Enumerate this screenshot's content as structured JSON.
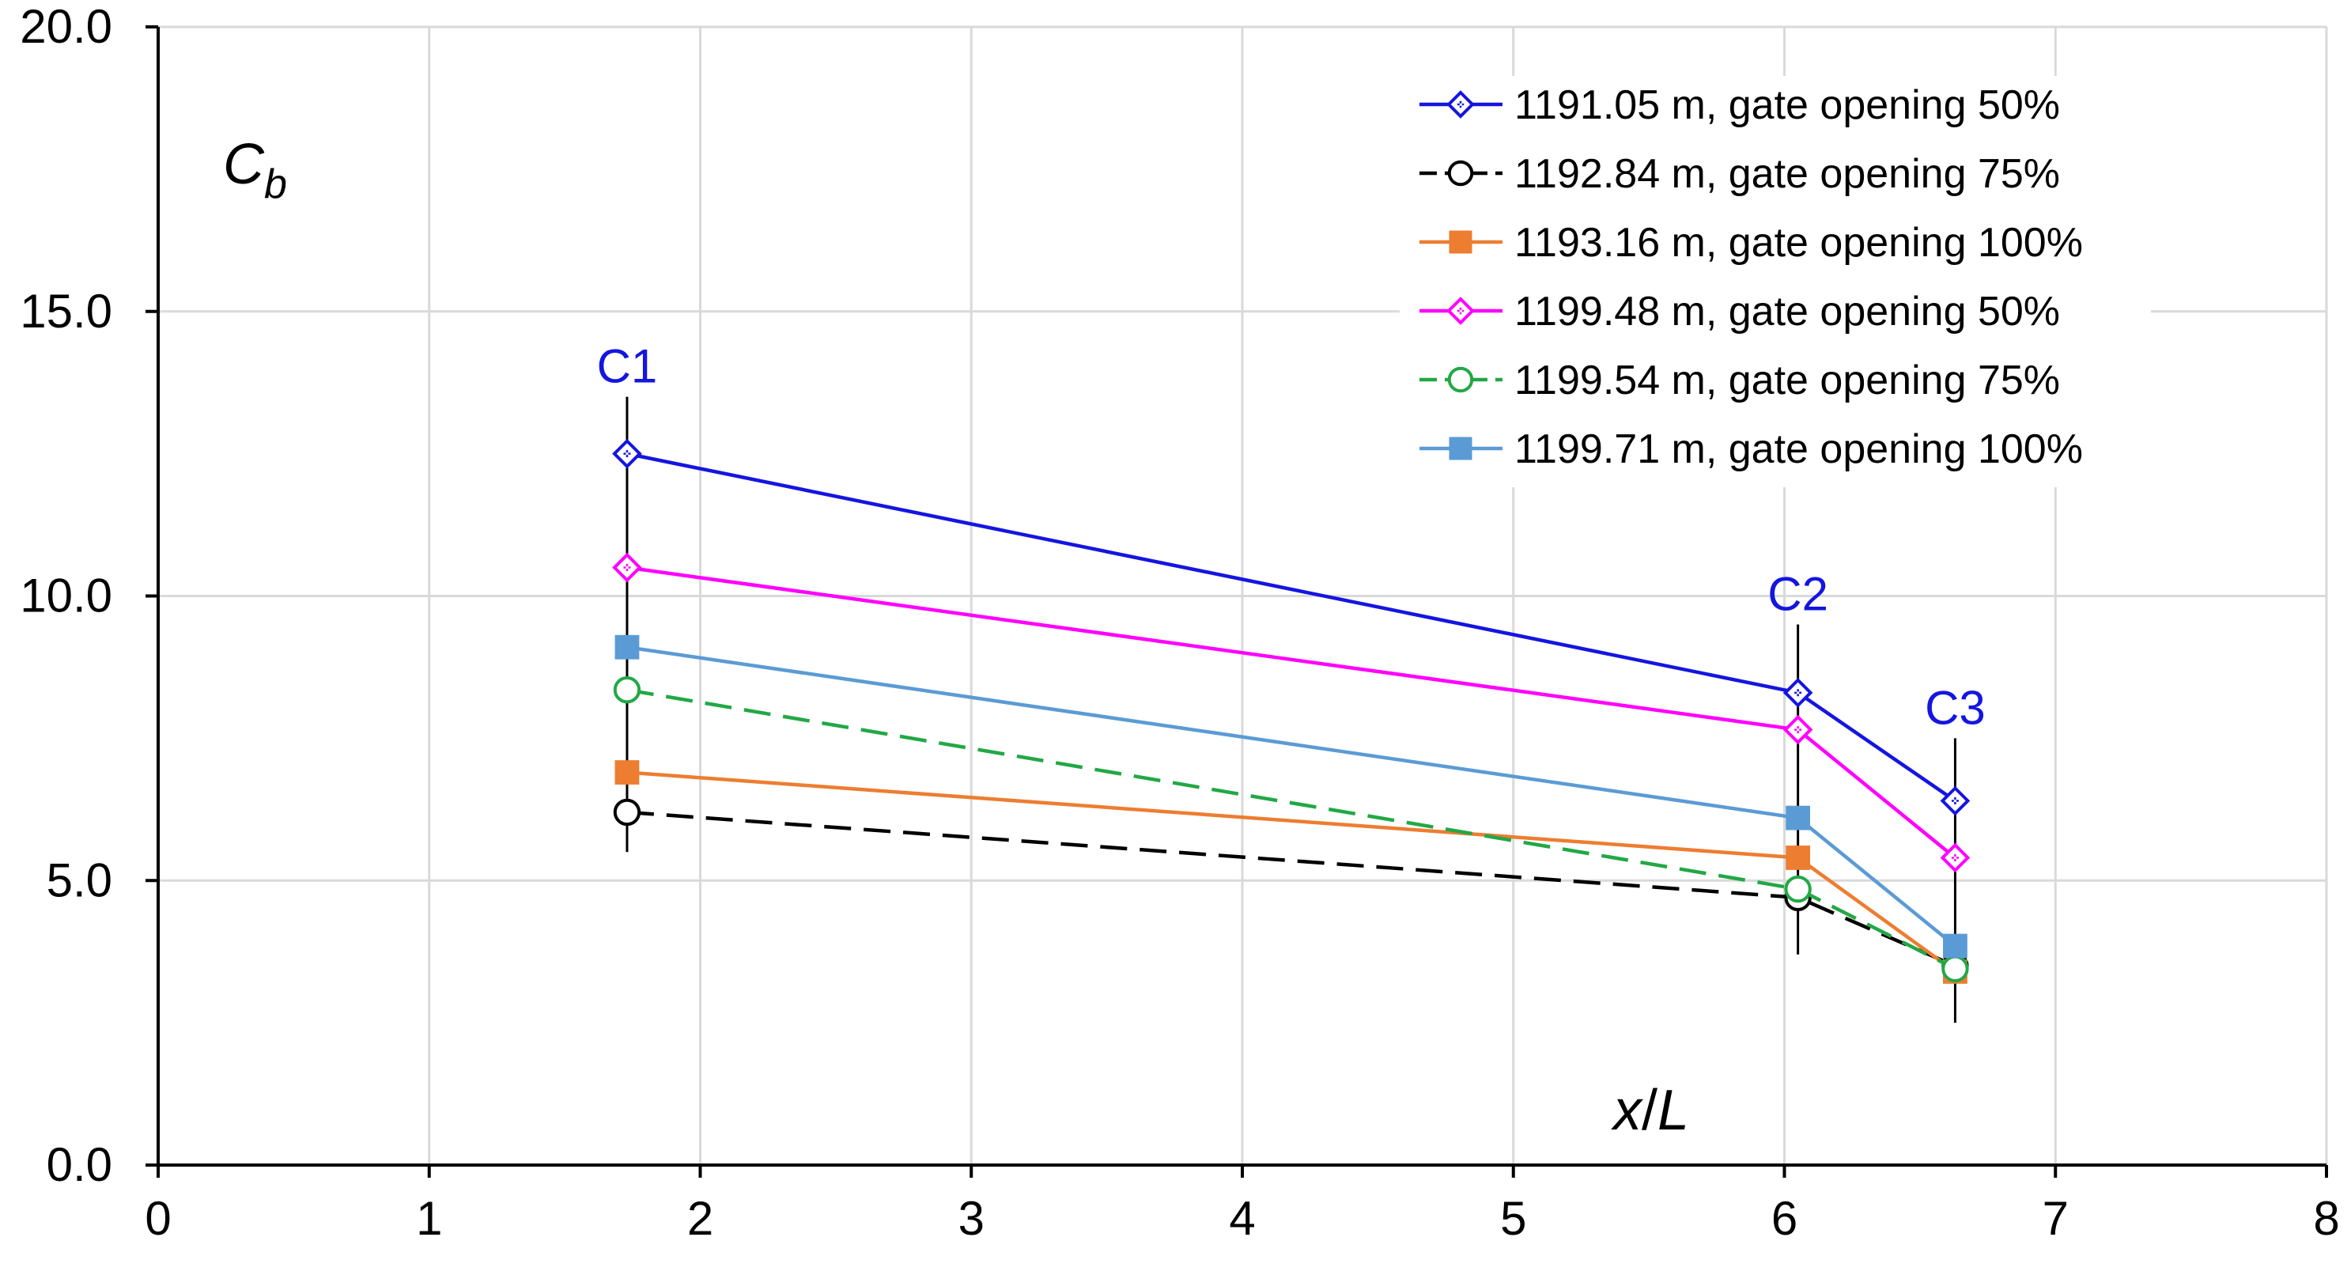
{
  "chart_data": {
    "type": "line",
    "xlabel_main": "x",
    "xlabel_sep": "/",
    "xlabel_sub": "L",
    "ylabel_main": "C",
    "ylabel_sub": "b",
    "xlim": [
      0,
      8
    ],
    "ylim": [
      0,
      20
    ],
    "grid": true,
    "legend_position": "top-right",
    "x_ticks": [
      0,
      1,
      2,
      3,
      4,
      5,
      6,
      7,
      8
    ],
    "x_tick_labels": [
      "0",
      "1",
      "2",
      "3",
      "4",
      "5",
      "6",
      "7",
      "8"
    ],
    "y_ticks": [
      0,
      5,
      10,
      15,
      20
    ],
    "y_tick_labels": [
      "0.0",
      "5.0",
      "10.0",
      "15.0",
      "20.0"
    ],
    "x": [
      1.73,
      6.05,
      6.63
    ],
    "series": [
      {
        "name": "1191.05 m, gate opening 50%",
        "values": [
          12.5,
          8.3,
          6.4
        ],
        "color": "#1515e0",
        "marker": "diamond",
        "fill": "none",
        "dash": "solid"
      },
      {
        "name": "1192.84 m, gate opening 75%",
        "values": [
          6.2,
          4.7,
          3.5
        ],
        "color": "#000000",
        "marker": "circle",
        "fill": "none",
        "dash": "dashed"
      },
      {
        "name": "1193.16 m, gate opening 100%",
        "values": [
          6.9,
          5.4,
          3.4
        ],
        "color": "#ed7d31",
        "marker": "square",
        "fill": "filled",
        "dash": "solid"
      },
      {
        "name": "1199.48 m, gate opening 50%",
        "values": [
          10.5,
          7.65,
          5.4
        ],
        "color": "#ff00ff",
        "marker": "diamond",
        "fill": "none",
        "dash": "solid"
      },
      {
        "name": "1199.54 m, gate opening 75%",
        "values": [
          8.35,
          4.85,
          3.45
        ],
        "color": "#22a845",
        "marker": "circle",
        "fill": "none",
        "dash": "dashed"
      },
      {
        "name": "1199.71 m, gate opening 100%",
        "values": [
          9.1,
          6.1,
          3.85
        ],
        "color": "#5b9bd5",
        "marker": "square",
        "fill": "filled",
        "dash": "solid"
      }
    ],
    "annotations": [
      {
        "label": "C1",
        "x": 1.73,
        "y_min": 5.5,
        "y_max": 13.5,
        "color": "#1515e0"
      },
      {
        "label": "C2",
        "x": 6.05,
        "y_min": 3.7,
        "y_max": 9.5,
        "color": "#1515e0"
      },
      {
        "label": "C3",
        "x": 6.63,
        "y_min": 2.5,
        "y_max": 7.5,
        "color": "#1515e0"
      }
    ]
  }
}
